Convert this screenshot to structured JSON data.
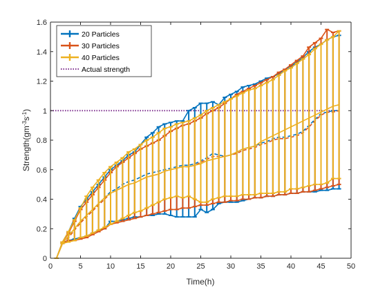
{
  "chart_data": {
    "type": "line",
    "title": "",
    "xlabel": "Time(h)",
    "ylabel_parts": {
      "base": "Strength(gm",
      "sup1": "-3",
      "mid": "s",
      "sup2": "-1",
      "end": ")"
    },
    "xlim": [
      0,
      50
    ],
    "ylim": [
      0,
      1.6
    ],
    "xticks": [
      0,
      5,
      10,
      15,
      20,
      25,
      30,
      35,
      40,
      45,
      50
    ],
    "yticks": [
      0,
      0.2,
      0.4,
      0.6,
      0.8,
      1,
      1.2,
      1.4,
      1.6
    ],
    "ytick_labels": [
      "0",
      "0.2",
      "0.4",
      "0.6",
      "0.8",
      "1",
      "1.2",
      "1.4",
      "1.6"
    ],
    "grid": false,
    "legend_position": "top-left",
    "x": [
      1,
      2,
      3,
      4,
      5,
      6,
      7,
      8,
      9,
      10,
      11,
      12,
      13,
      14,
      15,
      16,
      17,
      18,
      19,
      20,
      21,
      22,
      23,
      24,
      25,
      26,
      27,
      28,
      29,
      30,
      31,
      32,
      33,
      34,
      35,
      36,
      37,
      38,
      39,
      40,
      41,
      42,
      43,
      44,
      45,
      46,
      47,
      48
    ],
    "series": [
      {
        "name": "20 Particles",
        "color": "#0072BD",
        "mean": [
          0.0,
          0.1,
          0.15,
          0.2,
          0.25,
          0.29,
          0.33,
          0.37,
          0.41,
          0.45,
          0.47,
          0.5,
          0.52,
          0.53,
          0.55,
          0.57,
          0.58,
          0.59,
          0.6,
          0.61,
          0.62,
          0.63,
          0.63,
          0.64,
          0.66,
          0.68,
          0.71,
          0.7,
          0.69,
          0.7,
          0.72,
          0.74,
          0.75,
          0.76,
          0.78,
          0.79,
          0.81,
          0.82,
          0.82,
          0.83,
          0.84,
          0.86,
          0.9,
          0.94,
          0.98,
          0.99,
          1.0,
          1.0
        ],
        "lower": [
          0.0,
          0.1,
          0.12,
          0.13,
          0.14,
          0.15,
          0.17,
          0.19,
          0.2,
          0.25,
          0.25,
          0.26,
          0.27,
          0.28,
          0.28,
          0.29,
          0.29,
          0.3,
          0.3,
          0.29,
          0.28,
          0.28,
          0.28,
          0.28,
          0.33,
          0.31,
          0.33,
          0.37,
          0.38,
          0.38,
          0.38,
          0.39,
          0.4,
          0.41,
          0.41,
          0.42,
          0.42,
          0.43,
          0.43,
          0.44,
          0.44,
          0.45,
          0.45,
          0.45,
          0.46,
          0.46,
          0.47,
          0.47
        ],
        "upper": [
          0.0,
          0.11,
          0.18,
          0.27,
          0.35,
          0.4,
          0.45,
          0.5,
          0.55,
          0.6,
          0.63,
          0.66,
          0.7,
          0.72,
          0.77,
          0.82,
          0.85,
          0.89,
          0.91,
          0.92,
          0.93,
          0.93,
          1.0,
          1.02,
          1.05,
          1.05,
          1.06,
          1.04,
          1.09,
          1.11,
          1.13,
          1.16,
          1.17,
          1.18,
          1.2,
          1.22,
          1.23,
          1.25,
          1.28,
          1.3,
          1.33,
          1.36,
          1.4,
          1.43,
          1.45,
          1.48,
          1.5,
          1.51
        ]
      },
      {
        "name": "30 Particles",
        "color": "#D95319",
        "mean": [
          0.0,
          0.1,
          0.14,
          0.19,
          0.24,
          0.28,
          0.32,
          0.36,
          0.4,
          0.44,
          0.46,
          0.48,
          0.5,
          0.51,
          0.53,
          0.55,
          0.56,
          0.57,
          0.59,
          0.6,
          0.61,
          0.62,
          0.62,
          0.63,
          0.65,
          0.67,
          0.69,
          0.69,
          0.69,
          0.7,
          0.71,
          0.73,
          0.74,
          0.75,
          0.77,
          0.78,
          0.8,
          0.81,
          0.81,
          0.82,
          0.83,
          0.85,
          0.89,
          0.93,
          0.97,
          0.99,
          0.99,
          1.0
        ],
        "lower": [
          0.0,
          0.1,
          0.12,
          0.12,
          0.13,
          0.14,
          0.16,
          0.18,
          0.2,
          0.23,
          0.24,
          0.25,
          0.26,
          0.27,
          0.28,
          0.29,
          0.3,
          0.31,
          0.32,
          0.33,
          0.33,
          0.34,
          0.34,
          0.35,
          0.36,
          0.36,
          0.37,
          0.38,
          0.38,
          0.39,
          0.39,
          0.4,
          0.4,
          0.41,
          0.41,
          0.42,
          0.42,
          0.43,
          0.43,
          0.44,
          0.44,
          0.45,
          0.45,
          0.46,
          0.47,
          0.48,
          0.49,
          0.5
        ],
        "upper": [
          0.0,
          0.11,
          0.17,
          0.25,
          0.33,
          0.38,
          0.43,
          0.48,
          0.53,
          0.58,
          0.62,
          0.65,
          0.68,
          0.71,
          0.74,
          0.76,
          0.78,
          0.8,
          0.83,
          0.86,
          0.88,
          0.9,
          0.91,
          0.93,
          0.95,
          0.98,
          1.0,
          1.02,
          1.05,
          1.08,
          1.11,
          1.13,
          1.15,
          1.17,
          1.19,
          1.21,
          1.23,
          1.26,
          1.28,
          1.31,
          1.34,
          1.37,
          1.43,
          1.46,
          1.49,
          1.55,
          1.53,
          1.54
        ]
      },
      {
        "name": "40 Particles",
        "color": "#EDB120",
        "mean": [
          0.0,
          0.1,
          0.15,
          0.2,
          0.25,
          0.29,
          0.33,
          0.37,
          0.41,
          0.44,
          0.46,
          0.48,
          0.5,
          0.51,
          0.53,
          0.55,
          0.56,
          0.57,
          0.59,
          0.6,
          0.61,
          0.62,
          0.62,
          0.63,
          0.64,
          0.66,
          0.67,
          0.68,
          0.69,
          0.7,
          0.72,
          0.74,
          0.75,
          0.76,
          0.79,
          0.81,
          0.83,
          0.85,
          0.87,
          0.89,
          0.91,
          0.93,
          0.95,
          0.97,
          0.99,
          1.01,
          1.03,
          1.04
        ],
        "lower": [
          0.0,
          0.1,
          0.11,
          0.12,
          0.14,
          0.15,
          0.17,
          0.19,
          0.21,
          0.23,
          0.25,
          0.27,
          0.29,
          0.31,
          0.32,
          0.34,
          0.36,
          0.38,
          0.4,
          0.41,
          0.42,
          0.41,
          0.42,
          0.4,
          0.38,
          0.38,
          0.4,
          0.41,
          0.42,
          0.42,
          0.42,
          0.43,
          0.43,
          0.43,
          0.44,
          0.44,
          0.44,
          0.45,
          0.45,
          0.47,
          0.47,
          0.48,
          0.49,
          0.5,
          0.5,
          0.51,
          0.54,
          0.54
        ],
        "upper": [
          0.0,
          0.11,
          0.18,
          0.26,
          0.34,
          0.42,
          0.48,
          0.53,
          0.58,
          0.62,
          0.65,
          0.68,
          0.72,
          0.74,
          0.77,
          0.8,
          0.82,
          0.85,
          0.88,
          0.89,
          0.91,
          0.92,
          0.93,
          0.95,
          0.97,
          1.0,
          1.02,
          1.04,
          1.06,
          1.08,
          1.1,
          1.12,
          1.14,
          1.15,
          1.17,
          1.19,
          1.21,
          1.24,
          1.27,
          1.29,
          1.32,
          1.35,
          1.38,
          1.42,
          1.45,
          1.48,
          1.5,
          1.54
        ]
      }
    ],
    "reference_line": {
      "name": "Actual strength",
      "y": 1,
      "x_range": [
        0,
        48
      ],
      "color": "#7E2F8E",
      "style": "dotted"
    }
  }
}
